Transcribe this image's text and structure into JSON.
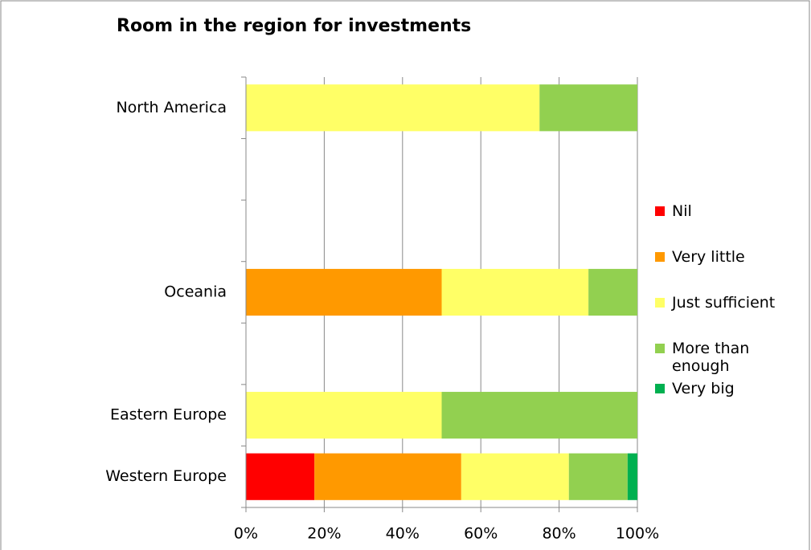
{
  "chart_data": {
    "type": "stacked_bar_horizontal",
    "title": "Room in the region for investments",
    "categories": [
      "North America",
      null,
      null,
      "Oceania",
      null,
      "Eastern Europe",
      "Western Europe"
    ],
    "series": [
      {
        "name": "Nil",
        "color": "#ff0000",
        "values": [
          0,
          null,
          null,
          0,
          null,
          0,
          17.5
        ]
      },
      {
        "name": "Very little",
        "color": "#ff9900",
        "values": [
          0,
          null,
          null,
          50,
          null,
          0,
          37.5
        ]
      },
      {
        "name": "Just sufficient",
        "color": "#ffff66",
        "values": [
          75,
          null,
          null,
          37.5,
          null,
          50,
          27.5
        ]
      },
      {
        "name": "More than enough",
        "color": "#92d050",
        "values": [
          25,
          null,
          null,
          12.5,
          null,
          50,
          15
        ]
      },
      {
        "name": "Very big",
        "color": "#00b050",
        "values": [
          0,
          null,
          null,
          0,
          null,
          0,
          2.5
        ]
      }
    ],
    "xlim": [
      0,
      100
    ],
    "xticks": [
      {
        "value": 0,
        "label": "0%"
      },
      {
        "value": 20,
        "label": "20%"
      },
      {
        "value": 40,
        "label": "40%"
      },
      {
        "value": 60,
        "label": "60%"
      },
      {
        "value": 80,
        "label": "80%"
      },
      {
        "value": 100,
        "label": "100%"
      }
    ],
    "grid": true,
    "legend": "right"
  }
}
